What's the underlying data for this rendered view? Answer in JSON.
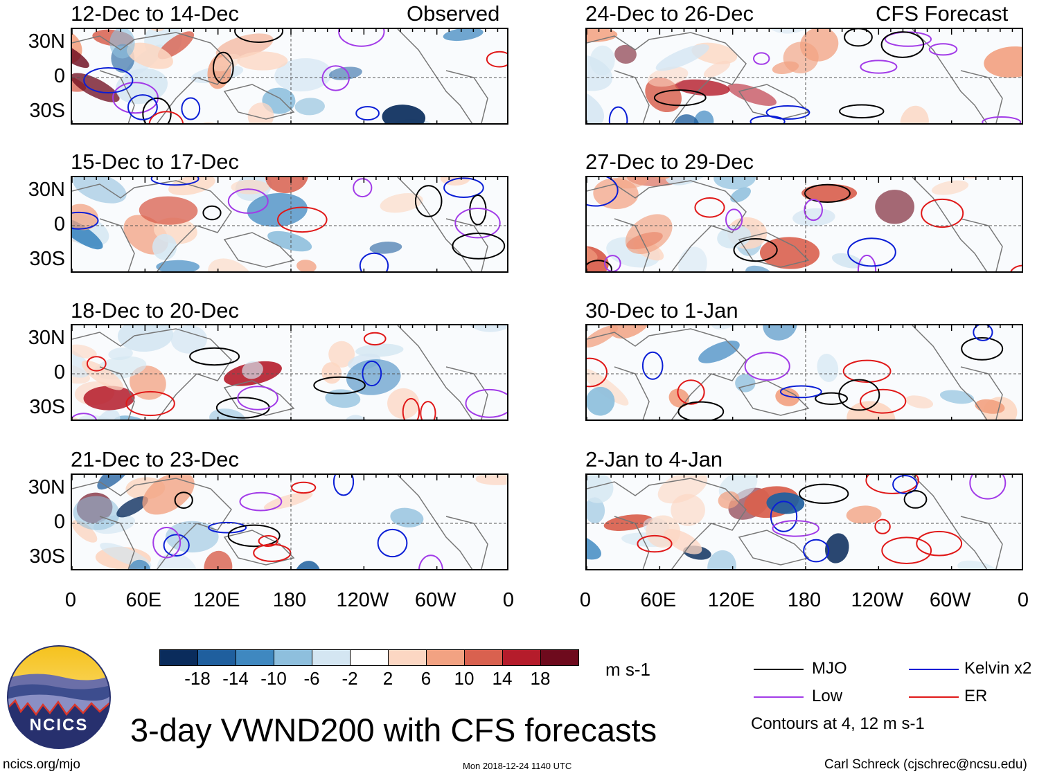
{
  "header": {
    "left_label": "Observed",
    "right_label": "CFS Forecast"
  },
  "panels": {
    "observed": [
      {
        "title": "12-Dec to 14-Dec"
      },
      {
        "title": "15-Dec to 17-Dec"
      },
      {
        "title": "18-Dec to 20-Dec"
      },
      {
        "title": "21-Dec to 23-Dec"
      }
    ],
    "forecast": [
      {
        "title": "24-Dec to 26-Dec"
      },
      {
        "title": "27-Dec to 29-Dec"
      },
      {
        "title": "30-Dec to 1-Jan"
      },
      {
        "title": "2-Jan to 4-Jan"
      }
    ]
  },
  "axes": {
    "lat_labels": [
      "30N",
      "0",
      "30S"
    ],
    "lon_labels": [
      "0",
      "60E",
      "120E",
      "180",
      "120W",
      "60W",
      "0"
    ]
  },
  "colorbar": {
    "unit": "m s-1",
    "ticks": [
      "-18",
      "-14",
      "-10",
      "-6",
      "-2",
      "2",
      "6",
      "10",
      "14",
      "18"
    ],
    "colors": [
      "#0a2c5c",
      "#1f5f9e",
      "#3f88c0",
      "#8ebfdd",
      "#d4e6f2",
      "#ffffff",
      "#fcd7c3",
      "#f2a282",
      "#d9614f",
      "#b51c2b",
      "#6e0a1d"
    ]
  },
  "legend": {
    "items": [
      {
        "label": "MJO",
        "color": "#000000"
      },
      {
        "label": "Kelvin x2",
        "color": "#0a1ed6"
      },
      {
        "label": "Low",
        "color": "#a23be8"
      },
      {
        "label": "ER",
        "color": "#e01818"
      }
    ],
    "note": "Contours at 4, 12 m s-1"
  },
  "logo": {
    "text": "NCICS"
  },
  "main_title": "3-day VWND200 with CFS forecasts",
  "footer": {
    "url": "ncics.org/mjo",
    "timestamp": "Mon 2018-12-24 1140 UTC",
    "credit": "Carl Schreck (cjschrec@ncsu.edu)"
  }
}
